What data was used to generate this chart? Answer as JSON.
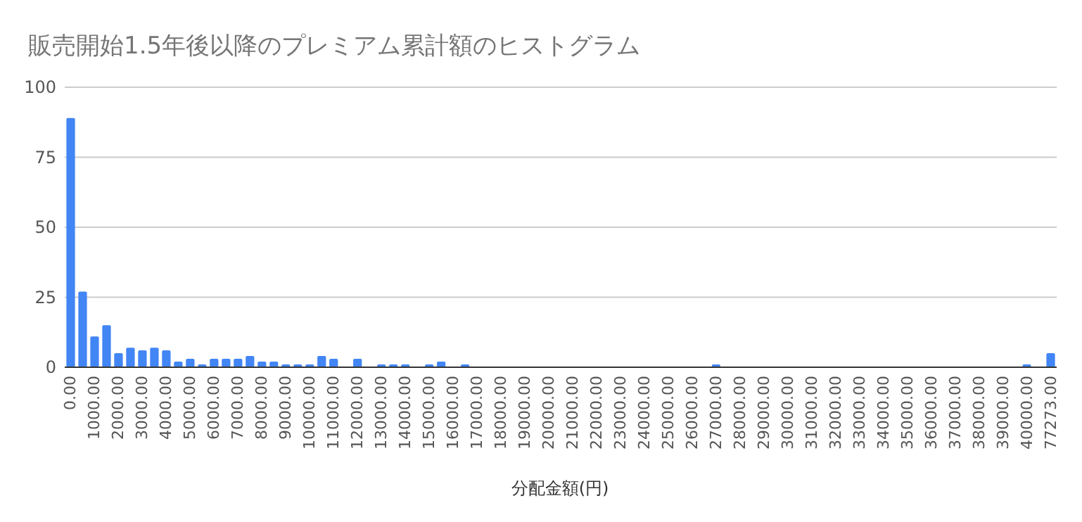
{
  "chart_data": {
    "type": "bar",
    "title": "販売開始1.5年後以降のプレミアム累計額のヒストグラム",
    "xlabel": "分配金額(円)",
    "categories": [
      "0.00",
      null,
      "1000.00",
      null,
      "2000.00",
      null,
      "3000.00",
      null,
      "4000.00",
      null,
      "5000.00",
      null,
      "6000.00",
      null,
      "7000.00",
      null,
      "8000.00",
      null,
      "9000.00",
      null,
      "10000.00",
      null,
      "11000.00",
      null,
      "12000.00",
      null,
      "13000.00",
      null,
      "14000.00",
      null,
      "15000.00",
      null,
      "16000.00",
      null,
      "17000.00",
      null,
      "18000.00",
      null,
      "19000.00",
      null,
      "20000.00",
      null,
      "21000.00",
      null,
      "22000.00",
      null,
      "23000.00",
      null,
      "24000.00",
      null,
      "25000.00",
      null,
      "26000.00",
      null,
      "27000.00",
      null,
      "28000.00",
      null,
      "29000.00",
      null,
      "30000.00",
      null,
      "31000.00",
      null,
      "32000.00",
      null,
      "33000.00",
      null,
      "34000.00",
      null,
      "35000.00",
      null,
      "36000.00",
      null,
      "37000.00",
      null,
      "38000.00",
      null,
      "39000.00",
      null,
      "40000.00",
      null,
      "77273.00"
    ],
    "values": [
      89,
      27,
      11,
      15,
      5,
      7,
      6,
      7,
      6,
      2,
      3,
      1,
      3,
      3,
      3,
      4,
      2,
      2,
      1,
      1,
      1,
      4,
      3,
      0,
      3,
      0,
      1,
      1,
      1,
      0,
      1,
      2,
      0,
      1,
      0,
      0,
      0,
      0,
      0,
      0,
      0,
      0,
      0,
      0,
      0,
      0,
      0,
      0,
      0,
      0,
      0,
      0,
      0,
      0,
      1,
      0,
      0,
      0,
      0,
      0,
      0,
      0,
      0,
      0,
      0,
      0,
      0,
      0,
      0,
      0,
      0,
      0,
      0,
      0,
      0,
      0,
      0,
      0,
      0,
      0,
      1,
      0,
      5
    ],
    "color": "#4285f4",
    "ylim": [
      0,
      100
    ],
    "yticks": [
      0,
      25,
      50,
      75,
      100
    ],
    "grid": "y"
  }
}
